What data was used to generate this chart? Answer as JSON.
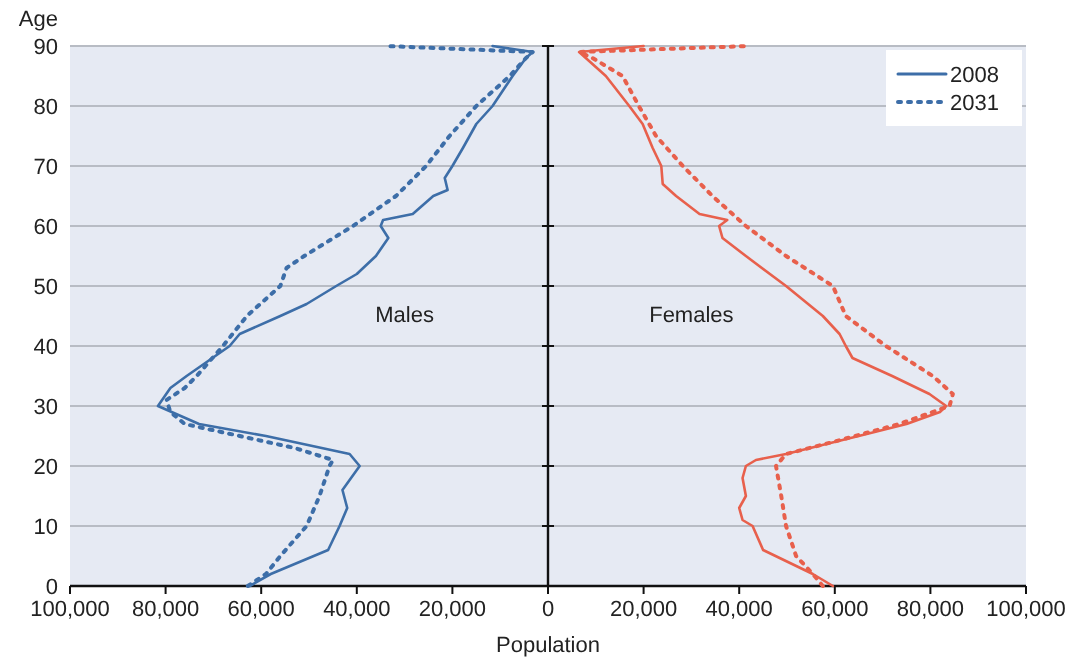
{
  "chart_data": {
    "type": "line",
    "xlabel": "Population",
    "ylabel": "Age",
    "xlim": [
      -100000,
      100000
    ],
    "xticks": [
      {
        "value": -100000,
        "label": "100,000"
      },
      {
        "value": -80000,
        "label": "80,000"
      },
      {
        "value": -60000,
        "label": "60,000"
      },
      {
        "value": -40000,
        "label": "40,000"
      },
      {
        "value": -20000,
        "label": "20,000"
      },
      {
        "value": 0,
        "label": "0"
      },
      {
        "value": 20000,
        "label": "20,000"
      },
      {
        "value": 40000,
        "label": "40,000"
      },
      {
        "value": 60000,
        "label": "60,000"
      },
      {
        "value": 80000,
        "label": "80,000"
      },
      {
        "value": 100000,
        "label": "100,000"
      }
    ],
    "ylim": [
      0,
      90
    ],
    "yticks": [
      0,
      10,
      20,
      30,
      40,
      50,
      60,
      70,
      80,
      90
    ],
    "grid": "y",
    "legend": "top right",
    "marker": "none",
    "annotations": [
      "Males",
      "Females"
    ],
    "series": [
      {
        "name": "2008",
        "color": "#3d6ea8",
        "line_style": "solid",
        "x": [
          -62400,
          -58000,
          -46000,
          -43600,
          -42000,
          -43000,
          -39400,
          -41500,
          -59000,
          -73000,
          -81600,
          -79000,
          -75600,
          -66600,
          -64500,
          -56000,
          -50500,
          -44300,
          -40000,
          -36000,
          -33400,
          -35000,
          -34500,
          -28300,
          -24000,
          -21000,
          -21600,
          -20000,
          -17800,
          -15000,
          -11600,
          -7400,
          -4600,
          -3200,
          -11600
        ],
        "values": [
          0,
          2,
          6,
          10,
          13,
          16,
          20,
          22,
          25,
          27,
          30,
          33,
          35,
          40,
          42,
          45,
          47,
          50,
          52,
          55,
          58,
          60,
          61,
          62,
          65,
          66,
          68,
          70,
          73,
          77,
          80,
          85,
          88,
          89,
          90
        ]
      },
      {
        "name": "2031",
        "color": "#3d6ea8",
        "line_style": "dotted",
        "x": [
          -62800,
          -59000,
          -56000,
          -50500,
          -47800,
          -45700,
          -45000,
          -53000,
          -64500,
          -76000,
          -79000,
          -79800,
          -76000,
          -73500,
          -68000,
          -63000,
          -56000,
          -54700,
          -51000,
          -40800,
          -31800,
          -25500,
          -20600,
          -15000,
          -8000,
          -4600,
          -3200,
          -34000
        ],
        "values": [
          0,
          2,
          5,
          10,
          15,
          20,
          21,
          23,
          25,
          27,
          29,
          31,
          33,
          35,
          40,
          45,
          50,
          53,
          55,
          60,
          65,
          70,
          75,
          80,
          85,
          88,
          89,
          90
        ]
      },
      {
        "color": "#e8604c",
        "line_style": "solid",
        "x": [
          59600,
          55400,
          45000,
          42800,
          40700,
          40000,
          41400,
          40700,
          41400,
          43500,
          49800,
          65000,
          75000,
          82000,
          83300,
          79800,
          72000,
          63700,
          62300,
          61000,
          57500,
          49800,
          41400,
          36500,
          35800,
          37500,
          31700,
          26800,
          24000,
          23700,
          21900,
          19800,
          17000,
          12100,
          6500,
          20000
        ],
        "values": [
          0,
          2,
          6,
          10,
          11,
          13,
          15,
          18,
          20,
          21,
          22,
          25,
          27,
          29,
          30,
          32,
          35,
          38,
          40,
          42,
          45,
          50,
          55,
          58,
          60,
          61,
          62,
          65,
          67,
          70,
          73,
          77,
          80,
          85,
          89,
          90
        ]
      },
      {
        "color": "#e8604c",
        "line_style": "dotted",
        "x": [
          57500,
          55400,
          51900,
          49800,
          48800,
          47700,
          49800,
          59600,
          73500,
          84000,
          84700,
          80500,
          70700,
          62300,
          59600,
          49800,
          41400,
          34400,
          28200,
          22600,
          19000,
          15600,
          9300,
          6500,
          42000
        ],
        "values": [
          0,
          2,
          5,
          10,
          15,
          20,
          22,
          24,
          27,
          30,
          32,
          35,
          40,
          45,
          50,
          55,
          60,
          65,
          70,
          75,
          80,
          85,
          88,
          89,
          90
        ]
      }
    ]
  }
}
